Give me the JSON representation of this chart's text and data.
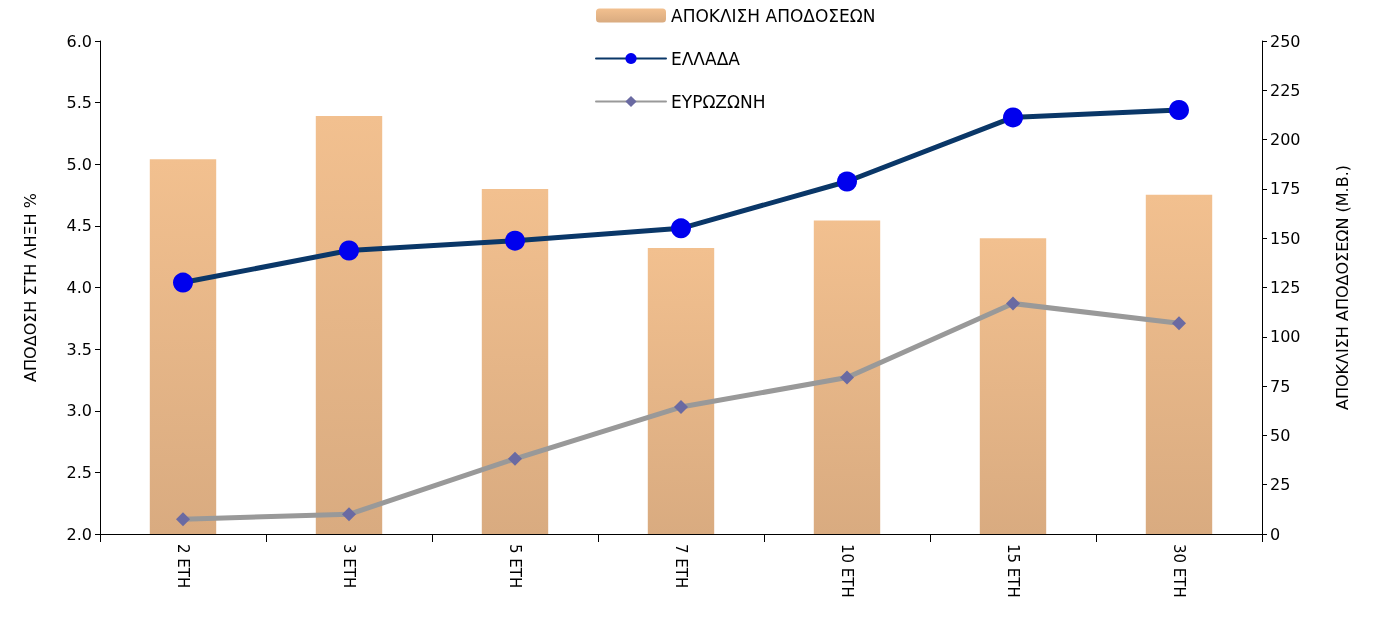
{
  "chart_data": {
    "type": "bar",
    "categories": [
      "2 ΕΤΗ",
      "3 ΕΤΗ",
      "5 ΕΤΗ",
      "7 ΕΤΗ",
      "10 ΕΤΗ",
      "15 ΕΤΗ",
      "30 ΕΤΗ"
    ],
    "ylabel": "ΑΠΟΔΟΣΗ ΣΤΗ ΛΗΞΗ %",
    "y2label": "ΑΠΟΚΛΙΣΗ ΑΠΟΔΟΣΕΩΝ (Μ.Β.)",
    "ylim": [
      2.0,
      6.0
    ],
    "yticks": [
      {
        "value": 2,
        "label": "2.0"
      },
      {
        "value": 2.5,
        "label": "2.5"
      },
      {
        "value": 3,
        "label": "3.0"
      },
      {
        "value": 3.5,
        "label": "3.5"
      },
      {
        "value": 4,
        "label": "4.0"
      },
      {
        "value": 4.5,
        "label": "4.5"
      },
      {
        "value": 5,
        "label": "5.0"
      },
      {
        "value": 5.5,
        "label": "5.5"
      },
      {
        "value": 6,
        "label": "6.0"
      }
    ],
    "y2lim": [
      0,
      250
    ],
    "y2ticks": [
      0,
      25,
      50,
      75,
      100,
      125,
      150,
      175,
      200,
      225,
      250
    ],
    "grid": false,
    "legend": "top",
    "series": [
      {
        "name": "ΑΠΟΚΛΙΣΗ ΑΠΟΔΟΣΕΩΝ",
        "type": "bar",
        "axis": "y2",
        "color": "#f2c08f",
        "values": [
          190,
          212,
          175,
          145,
          159,
          150,
          172
        ]
      },
      {
        "name": "ΕΛΛΑΔΑ",
        "type": "line",
        "marker": "circle",
        "color": "#0a3768",
        "values": [
          4.04,
          4.3,
          4.38,
          4.48,
          4.86,
          5.38,
          5.44
        ]
      },
      {
        "name": "ΕΥΡΩΖΩΝΗ",
        "type": "line",
        "marker": "diamond",
        "color": "#999999",
        "values": [
          2.12,
          2.16,
          2.61,
          3.03,
          3.27,
          3.87,
          3.71
        ]
      }
    ]
  }
}
